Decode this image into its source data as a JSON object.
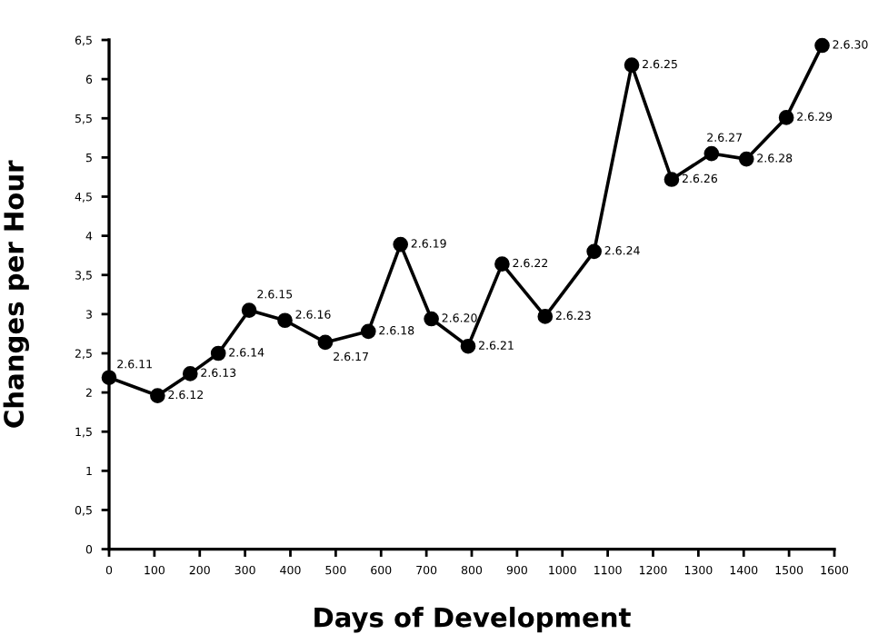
{
  "chart_data": {
    "type": "line",
    "xlabel": "Days of Development",
    "ylabel": "Changes per Hour",
    "x": [
      0,
      107,
      179,
      241,
      309,
      388,
      477,
      572,
      643,
      711,
      792,
      867,
      962,
      1070,
      1153,
      1241,
      1329,
      1406,
      1494,
      1573
    ],
    "series": [
      {
        "color": "#000000",
        "values": [
          2.19,
          1.96,
          2.24,
          2.5,
          3.05,
          2.92,
          2.64,
          2.78,
          3.89,
          2.94,
          2.59,
          3.64,
          2.97,
          3.8,
          6.18,
          4.72,
          5.05,
          4.98,
          5.51,
          6.43
        ]
      }
    ],
    "marker": "circle",
    "line_style": "solid",
    "grid": false,
    "legend": false,
    "xlim": [
      0,
      1600
    ],
    "xticks": [
      0,
      100,
      200,
      300,
      400,
      500,
      600,
      700,
      800,
      900,
      1000,
      1100,
      1200,
      1300,
      1400,
      1500,
      1600
    ],
    "ylim": [
      0,
      6.5
    ],
    "yticks": [
      0,
      {
        "value": 0.5,
        "label": "0,5"
      },
      1,
      {
        "value": 1.5,
        "label": "1,5"
      },
      2,
      {
        "value": 2.5,
        "label": "2,5"
      },
      3,
      {
        "value": 3.5,
        "label": "3,5"
      },
      4,
      {
        "value": 4.5,
        "label": "4,5"
      },
      5,
      {
        "value": 5.5,
        "label": "5,5"
      },
      6,
      {
        "value": 6.5,
        "label": "6,5"
      }
    ],
    "annotations": [
      {
        "text": "2.6.11",
        "x": 0,
        "y": 2.19
      },
      {
        "text": "2.6.12",
        "x": 107,
        "y": 1.96
      },
      {
        "text": "2.6.13",
        "x": 179,
        "y": 2.24
      },
      {
        "text": "2.6.14",
        "x": 241,
        "y": 2.5
      },
      {
        "text": "2.6.15",
        "x": 309,
        "y": 3.05
      },
      {
        "text": "2.6.16",
        "x": 388,
        "y": 2.92
      },
      {
        "text": "2.6.17",
        "x": 477,
        "y": 2.64
      },
      {
        "text": "2.6.18",
        "x": 572,
        "y": 2.78
      },
      {
        "text": "2.6.19",
        "x": 643,
        "y": 3.89
      },
      {
        "text": "2.6.20",
        "x": 711,
        "y": 2.94
      },
      {
        "text": "2.6.21",
        "x": 792,
        "y": 2.59
      },
      {
        "text": "2.6.22",
        "x": 867,
        "y": 3.64
      },
      {
        "text": "2.6.23",
        "x": 962,
        "y": 2.97
      },
      {
        "text": "2.6.24",
        "x": 1070,
        "y": 3.8
      },
      {
        "text": "2.6.25",
        "x": 1153,
        "y": 6.18
      },
      {
        "text": "2.6.26",
        "x": 1241,
        "y": 4.72
      },
      {
        "text": "2.6.27",
        "x": 1329,
        "y": 5.05
      },
      {
        "text": "2.6.28",
        "x": 1406,
        "y": 4.98
      },
      {
        "text": "2.6.29",
        "x": 1494,
        "y": 5.51
      },
      {
        "text": "2.6.30",
        "x": 1573,
        "y": 6.43
      }
    ]
  }
}
